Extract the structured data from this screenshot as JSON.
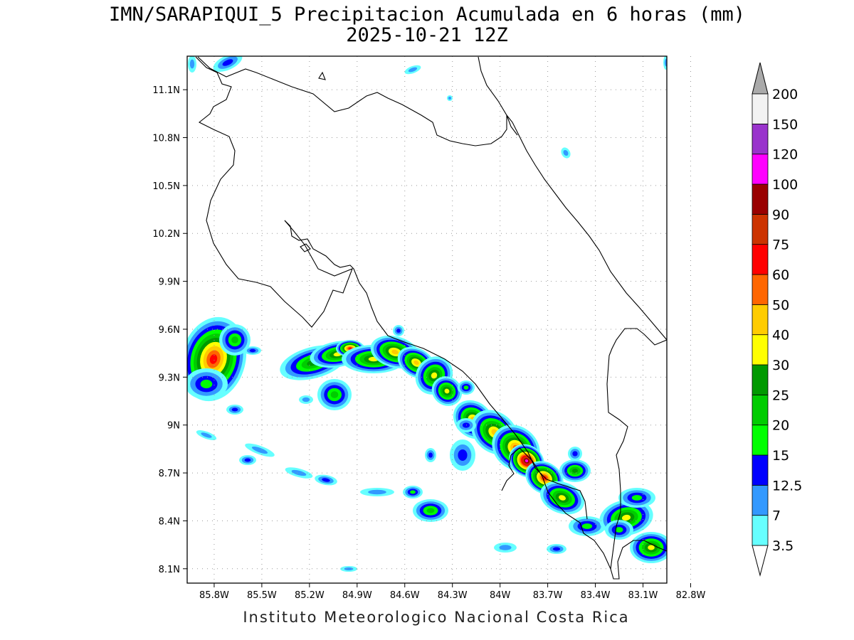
{
  "header": {
    "title_line1": "IMN/SARAPIQUI_5 Precipitacion Acumulada en 6 horas (mm)",
    "title_line2": "2025-10-21 12Z"
  },
  "footer": {
    "credit": "Instituto Meteorologico Nacional Costa Rica"
  },
  "map": {
    "lon_range": [
      -85.97,
      -82.95
    ],
    "lat_range": [
      8.01,
      11.31
    ],
    "grid": "dotted",
    "lon_ticks": [
      {
        "value": -85.8,
        "label": "85.8W"
      },
      {
        "value": -85.5,
        "label": "85.5W"
      },
      {
        "value": -85.2,
        "label": "85.2W"
      },
      {
        "value": -84.9,
        "label": "84.9W"
      },
      {
        "value": -84.6,
        "label": "84.6W"
      },
      {
        "value": -84.3,
        "label": "84.3W"
      },
      {
        "value": -84.0,
        "label": "84W"
      },
      {
        "value": -83.7,
        "label": "83.7W"
      },
      {
        "value": -83.4,
        "label": "83.4W"
      },
      {
        "value": -83.1,
        "label": "83.1W"
      },
      {
        "value": -82.8,
        "label": "82.8W"
      }
    ],
    "lat_ticks": [
      {
        "value": 11.1,
        "label": "11.1N"
      },
      {
        "value": 10.8,
        "label": "10.8N"
      },
      {
        "value": 10.5,
        "label": "10.5N"
      },
      {
        "value": 10.2,
        "label": "10.2N"
      },
      {
        "value": 9.9,
        "label": "9.9N"
      },
      {
        "value": 9.6,
        "label": "9.6N"
      },
      {
        "value": 9.3,
        "label": "9.3N"
      },
      {
        "value": 9.0,
        "label": "9N"
      },
      {
        "value": 8.7,
        "label": "8.7N"
      },
      {
        "value": 8.4,
        "label": "8.4N"
      },
      {
        "value": 8.1,
        "label": "8.1N"
      }
    ]
  },
  "legend": {
    "units": "mm",
    "levels": [
      {
        "label": "3.5",
        "color": "#66ffff"
      },
      {
        "label": "7",
        "color": "#3399ff"
      },
      {
        "label": "12.5",
        "color": "#0000ff"
      },
      {
        "label": "15",
        "color": "#00ff00"
      },
      {
        "label": "20",
        "color": "#00cc00"
      },
      {
        "label": "25",
        "color": "#009900"
      },
      {
        "label": "30",
        "color": "#ffff00"
      },
      {
        "label": "40",
        "color": "#ffcc00"
      },
      {
        "label": "50",
        "color": "#ff6600"
      },
      {
        "label": "60",
        "color": "#ff0000"
      },
      {
        "label": "75",
        "color": "#cc3300"
      },
      {
        "label": "90",
        "color": "#990000"
      },
      {
        "label": "100",
        "color": "#ff00ff"
      },
      {
        "label": "120",
        "color": "#9933cc"
      },
      {
        "label": "150",
        "color": "#f2f2f2"
      },
      {
        "label": "200",
        "color": "#aaaaaa"
      }
    ]
  }
}
